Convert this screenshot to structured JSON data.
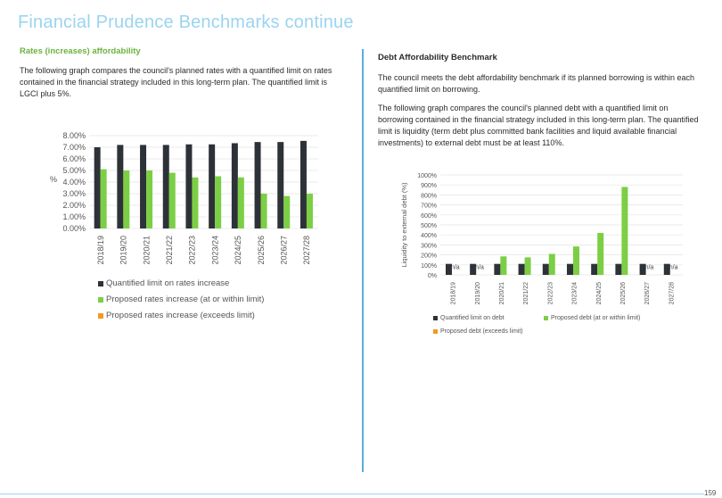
{
  "page": {
    "title": "Financial Prudence Benchmarks continue",
    "page_number": "159"
  },
  "left": {
    "heading": "Rates (increases) affordability",
    "body": "The following graph compares the council's planned rates with a quantified limit on rates contained in the financial strategy included in this long-term plan. The quantified limit is LGCI plus 5%."
  },
  "right": {
    "heading": "Debt Affordability Benchmark",
    "body1": "The council meets the debt affordability benchmark if its planned borrowing is within each quantified limit on borrowing.",
    "body2": "The following graph compares the council's planned debt with a quantified limit on borrowing contained in the financial strategy included in this long-term plan. The quantified limit is liquidity (term debt plus committed bank facilities and liquid available financial investments) to external debt must be at least 110%."
  },
  "colors": {
    "limit": "#2d3238",
    "within": "#7ccf45",
    "exceeds": "#f39a1e",
    "title": "#9ad4f0",
    "accent_green": "#6bb33c",
    "divider": "#5aaedc"
  },
  "chart_data": [
    {
      "type": "bar",
      "categories": [
        "2018/19",
        "2019/20",
        "2020/21",
        "2021/22",
        "2022/23",
        "2023/24",
        "2024/25",
        "2025/26",
        "2026/27",
        "2027/28"
      ],
      "ylabel": "%",
      "ylim": [
        0,
        8
      ],
      "yticks": [
        "0.00%",
        "1.00%",
        "2.00%",
        "3.00%",
        "4.00%",
        "5.00%",
        "6.00%",
        "7.00%",
        "8.00%"
      ],
      "series": [
        {
          "name": "Quantified limit on rates increase",
          "color": "#2d3238",
          "values": [
            7.0,
            7.2,
            7.2,
            7.2,
            7.25,
            7.25,
            7.35,
            7.45,
            7.45,
            7.55
          ]
        },
        {
          "name": "Proposed rates increase (at or within limit)",
          "color": "#7ccf45",
          "values": [
            5.1,
            5.0,
            5.0,
            4.8,
            4.4,
            4.5,
            4.4,
            3.0,
            2.8,
            3.0
          ]
        },
        {
          "name": "Proposed rates increase (exceeds limit)",
          "color": "#f39a1e",
          "values": [
            0,
            0,
            0,
            0,
            0,
            0,
            0,
            0,
            0,
            0
          ]
        }
      ],
      "legend": "bottom"
    },
    {
      "type": "bar",
      "categories": [
        "2018/19",
        "2019/20",
        "2020/21",
        "2021/22",
        "2022/23",
        "2023/24",
        "2024/25",
        "2025/26",
        "2026/27",
        "2027/28"
      ],
      "ylabel": "Liquidity to external debt (%)",
      "ylim": [
        0,
        1000
      ],
      "yticks": [
        "0%",
        "100%",
        "200%",
        "300%",
        "400%",
        "500%",
        "600%",
        "700%",
        "800%",
        "900%",
        "1000%"
      ],
      "series": [
        {
          "name": "Quantified limit on debt",
          "color": "#2d3238",
          "values": [
            110,
            110,
            110,
            110,
            110,
            110,
            110,
            110,
            110,
            110
          ]
        },
        {
          "name": "Proposed debt (at or within limit)",
          "color": "#7ccf45",
          "values": [
            null,
            null,
            185,
            175,
            210,
            285,
            420,
            880,
            null,
            null
          ]
        },
        {
          "name": "Proposed debt (exceeds limit)",
          "color": "#f39a1e",
          "values": [
            0,
            0,
            0,
            0,
            0,
            0,
            0,
            0,
            0,
            0
          ]
        }
      ],
      "na_label": "n/a",
      "legend": "bottom"
    }
  ]
}
